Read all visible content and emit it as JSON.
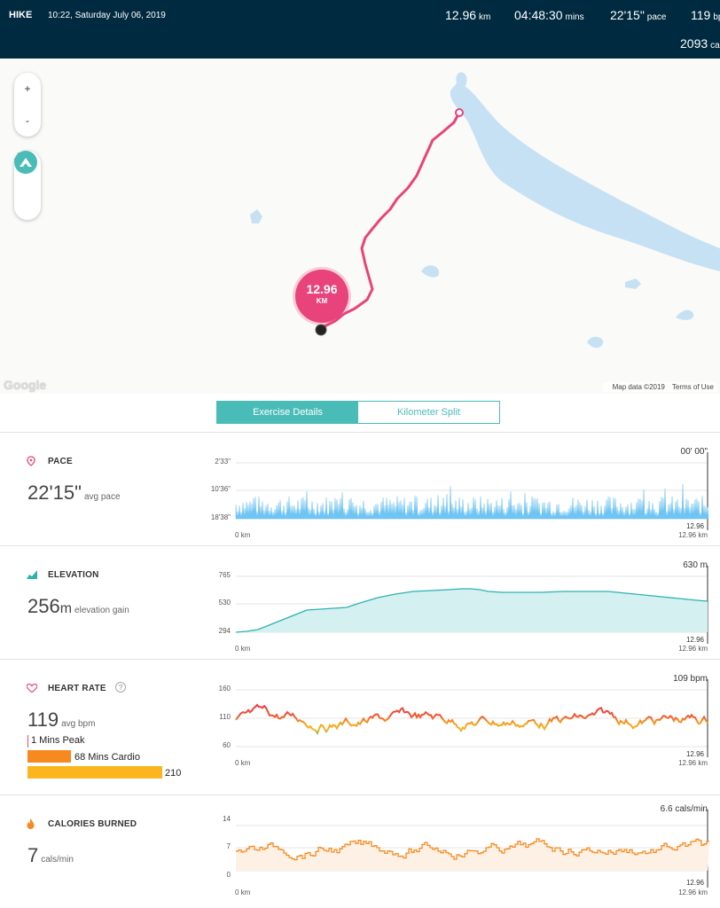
{
  "header": {
    "activity": "HIKE",
    "datetime": "10:22, Saturday July 06, 2019",
    "distance": "12.96",
    "distance_unit": "km",
    "duration": "04:48:30",
    "duration_unit": "mins",
    "pace": "22'15\"",
    "pace_unit": "pace",
    "heart_rate": "119",
    "heart_rate_unit": "bp",
    "calories": "2093",
    "calories_unit": "ca"
  },
  "map": {
    "zoom_in": "+",
    "zoom_out": "-",
    "pin_value": "12.96",
    "pin_unit": "KM",
    "google": "Google",
    "map_data": "Map data ©2019",
    "terms": "Terms of Use",
    "route_color": "#e8437a",
    "water_color": "#c7e1f4"
  },
  "tabs": {
    "details": "Exercise Details",
    "split": "Kilometer Split"
  },
  "pace": {
    "title": "PACE",
    "value": "22'15\"",
    "label": "avg pace",
    "current": "00' 00\"",
    "y_ticks": [
      "2'33\"",
      "10'36\"",
      "18'38\""
    ],
    "x_start": "0 km",
    "x_end": "12.96 km",
    "marker": "12.96",
    "color": "#6ec4f2"
  },
  "elevation": {
    "title": "ELEVATION",
    "value": "256",
    "unit": "m",
    "label": "elevation gain",
    "current": "630 m",
    "y_ticks": [
      "765",
      "530",
      "294"
    ],
    "x_start": "0 km",
    "x_end": "12.96 km",
    "marker": "12.96",
    "color": "#2bb3b0"
  },
  "heart": {
    "title": "HEART RATE",
    "help": "?",
    "value": "119",
    "label": "avg bpm",
    "current": "109 bpm",
    "y_ticks": [
      "160",
      "110",
      "60"
    ],
    "x_start": "0 km",
    "x_end": "12.96 km",
    "marker": "12.96",
    "zones": [
      {
        "label": "1 Mins Peak",
        "minutes": 1,
        "color": "#e8437a"
      },
      {
        "label": "68 Mins Cardio",
        "minutes": 68,
        "color": "#f78a1e"
      },
      {
        "label": "210",
        "minutes": 210,
        "color": "#fbb51e"
      }
    ]
  },
  "calories": {
    "title": "CALORIES BURNED",
    "value": "7",
    "label": "cals/min",
    "current": "6.6 cals/min",
    "y_ticks": [
      "14",
      "7",
      "0"
    ],
    "x_start": "0 km",
    "x_end": "12.96 km",
    "marker": "12.96",
    "color": "#f78a1e"
  }
}
